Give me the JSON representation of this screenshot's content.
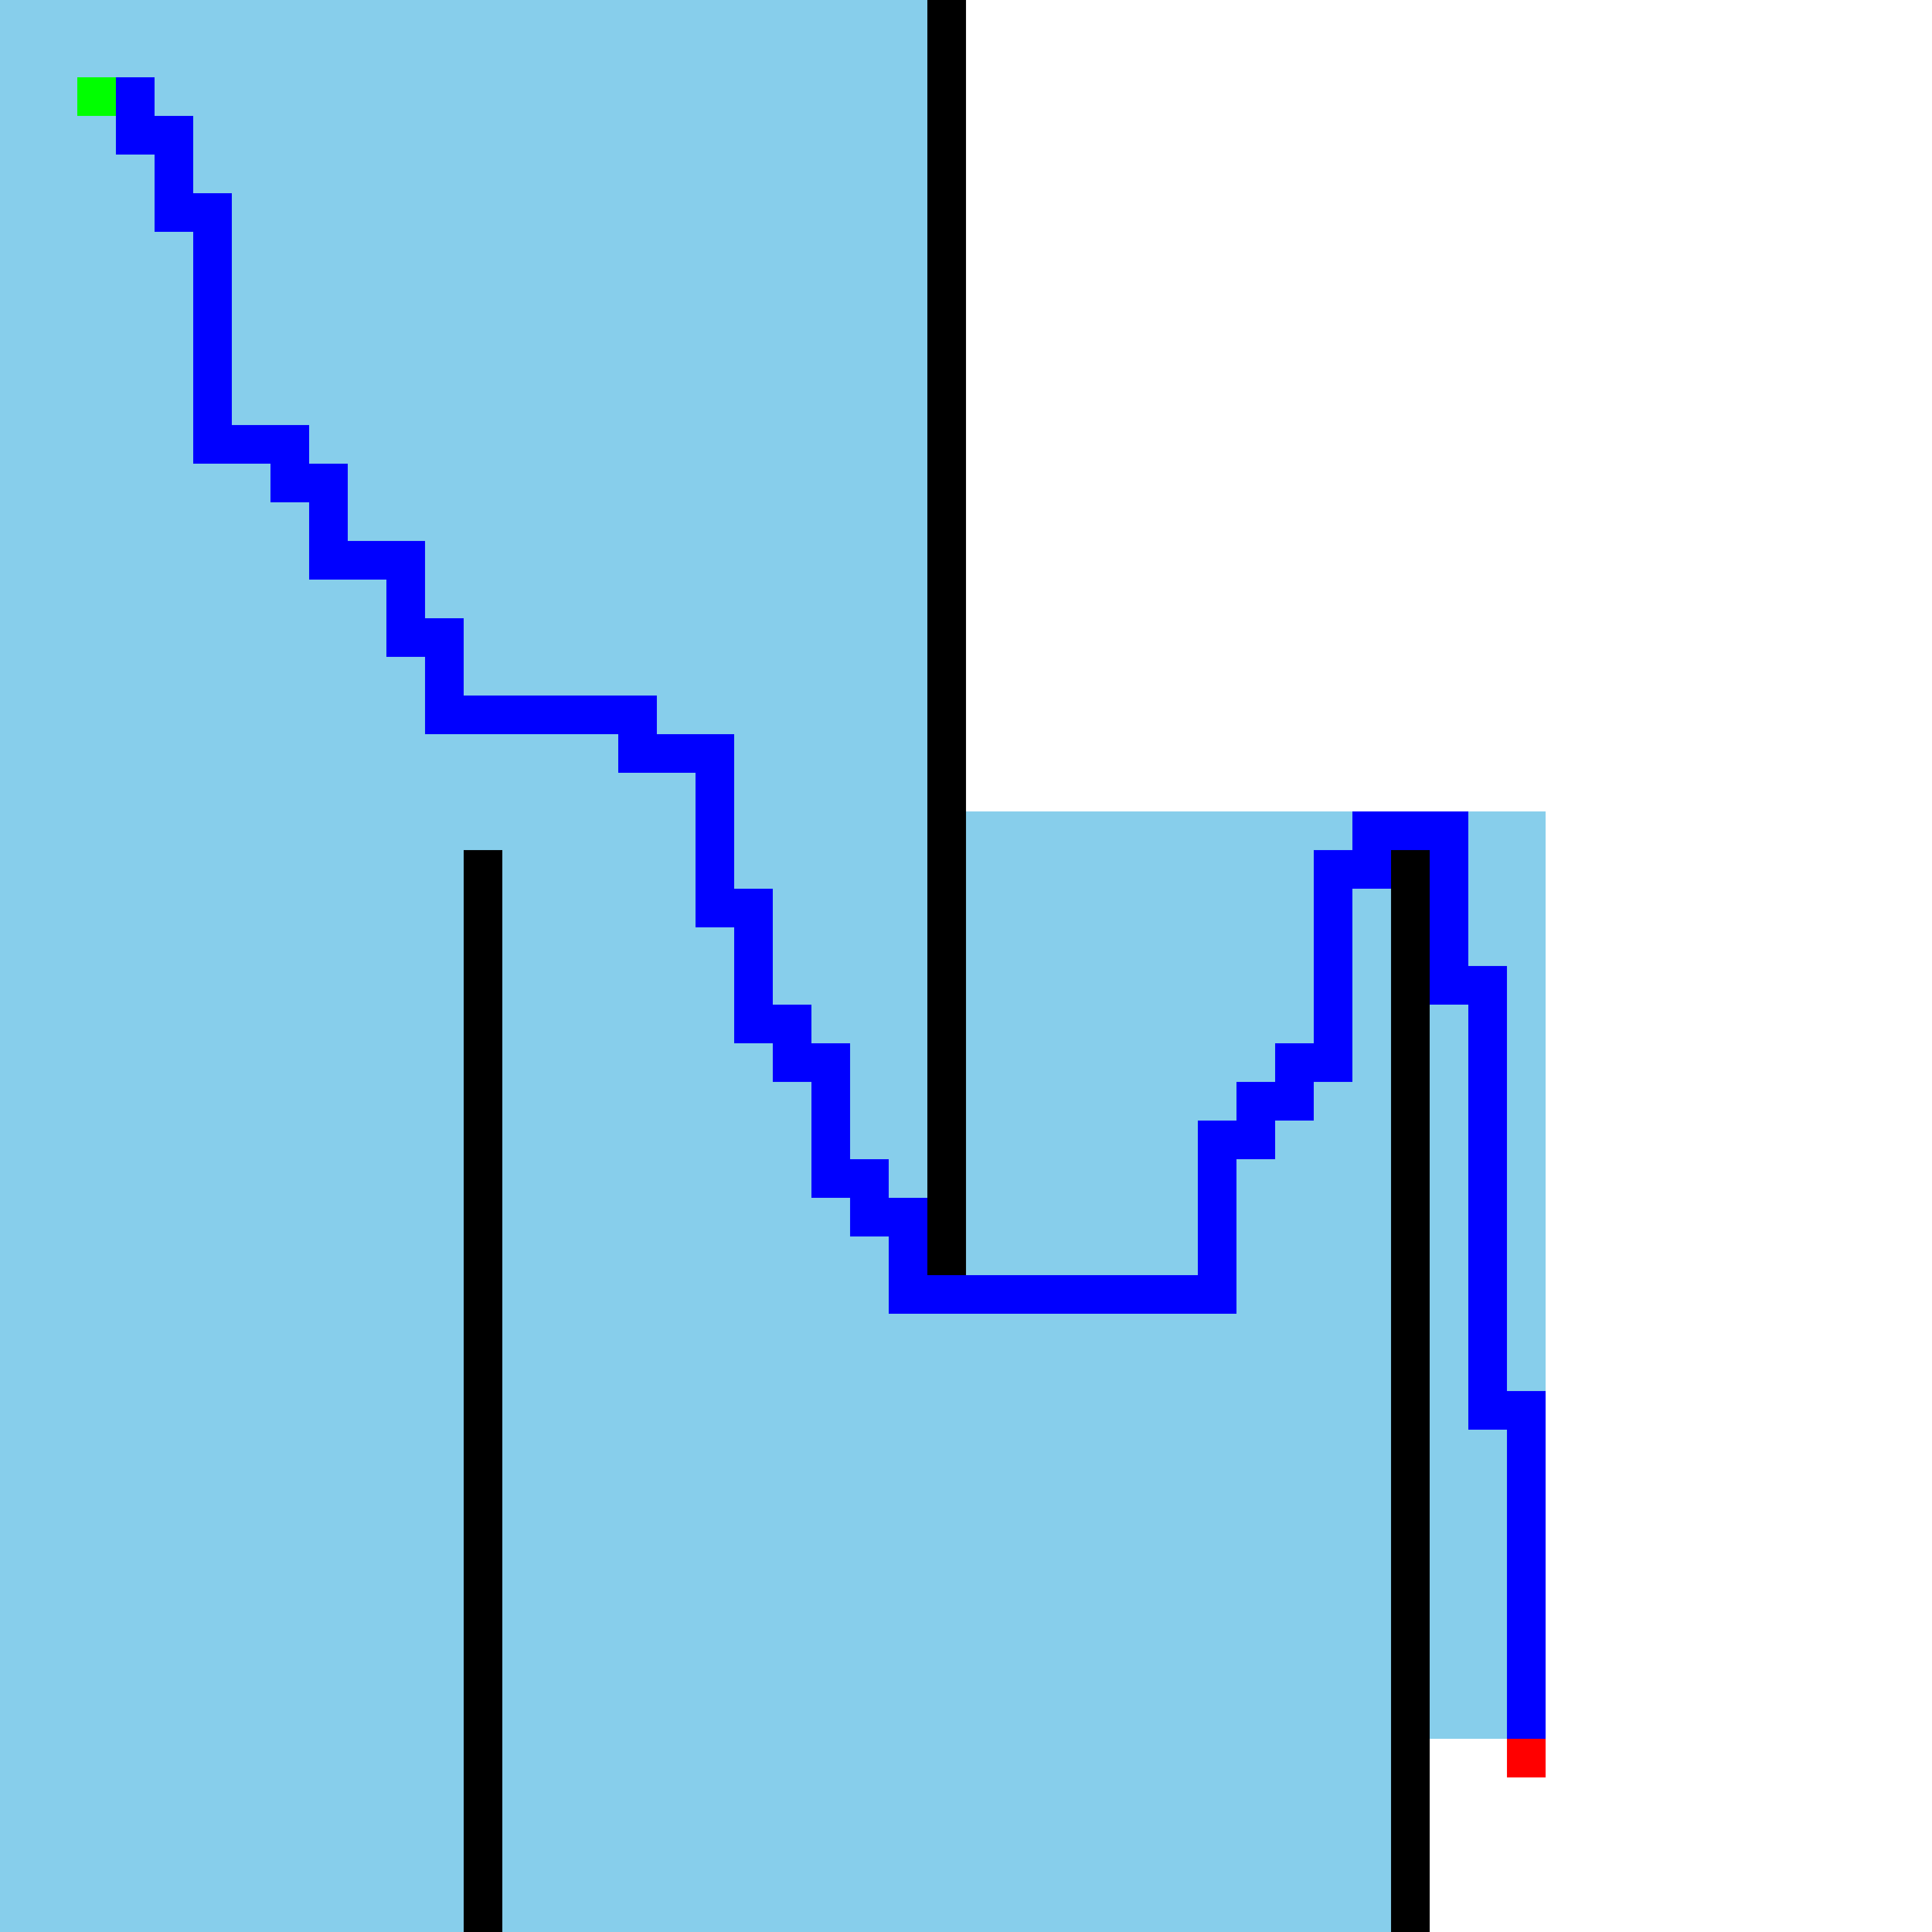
{
  "maze": {
    "grid": {
      "cols": 50,
      "rows": 50
    },
    "colors": {
      "background": "#ffffff",
      "explored": "#87ceeb",
      "wall": "#000000",
      "path": "#0000ff",
      "start": "#00ff00",
      "goal": "#ff0000"
    },
    "explored_regions": [
      {
        "col": 0,
        "row": 0,
        "w": 24,
        "h": 50
      },
      {
        "col": 24,
        "row": 21,
        "w": 12,
        "h": 29
      },
      {
        "col": 36,
        "row": 21,
        "w": 1,
        "h": 22
      },
      {
        "col": 37,
        "row": 21,
        "w": 3,
        "h": 24
      }
    ],
    "walls": [
      {
        "col": 24,
        "row": 0,
        "w": 1,
        "h": 33
      },
      {
        "col": 12,
        "row": 22,
        "w": 1,
        "h": 28
      },
      {
        "col": 36,
        "row": 22,
        "w": 1,
        "h": 28
      }
    ],
    "path": [
      [
        3,
        2
      ],
      [
        3,
        3
      ],
      [
        4,
        3
      ],
      [
        4,
        4
      ],
      [
        4,
        5
      ],
      [
        5,
        5
      ],
      [
        5,
        6
      ],
      [
        5,
        7
      ],
      [
        5,
        8
      ],
      [
        5,
        9
      ],
      [
        5,
        10
      ],
      [
        5,
        11
      ],
      [
        6,
        11
      ],
      [
        7,
        11
      ],
      [
        7,
        12
      ],
      [
        8,
        12
      ],
      [
        8,
        13
      ],
      [
        8,
        14
      ],
      [
        9,
        14
      ],
      [
        10,
        14
      ],
      [
        10,
        15
      ],
      [
        10,
        16
      ],
      [
        11,
        16
      ],
      [
        11,
        17
      ],
      [
        11,
        18
      ],
      [
        12,
        18
      ],
      [
        13,
        18
      ],
      [
        14,
        18
      ],
      [
        15,
        18
      ],
      [
        16,
        18
      ],
      [
        16,
        19
      ],
      [
        17,
        19
      ],
      [
        18,
        19
      ],
      [
        18,
        20
      ],
      [
        18,
        21
      ],
      [
        18,
        22
      ],
      [
        18,
        23
      ],
      [
        19,
        23
      ],
      [
        19,
        24
      ],
      [
        19,
        25
      ],
      [
        19,
        26
      ],
      [
        20,
        26
      ],
      [
        20,
        27
      ],
      [
        21,
        27
      ],
      [
        21,
        28
      ],
      [
        21,
        29
      ],
      [
        21,
        30
      ],
      [
        22,
        30
      ],
      [
        22,
        31
      ],
      [
        23,
        31
      ],
      [
        23,
        32
      ],
      [
        23,
        33
      ],
      [
        24,
        33
      ],
      [
        25,
        33
      ],
      [
        26,
        33
      ],
      [
        27,
        33
      ],
      [
        28,
        33
      ],
      [
        29,
        33
      ],
      [
        30,
        33
      ],
      [
        31,
        33
      ],
      [
        31,
        32
      ],
      [
        31,
        31
      ],
      [
        31,
        30
      ],
      [
        31,
        29
      ],
      [
        32,
        29
      ],
      [
        32,
        28
      ],
      [
        33,
        28
      ],
      [
        33,
        27
      ],
      [
        34,
        27
      ],
      [
        34,
        26
      ],
      [
        34,
        25
      ],
      [
        34,
        24
      ],
      [
        34,
        23
      ],
      [
        34,
        22
      ],
      [
        35,
        22
      ],
      [
        35,
        21
      ],
      [
        36,
        21
      ],
      [
        37,
        21
      ],
      [
        37,
        22
      ],
      [
        37,
        23
      ],
      [
        37,
        24
      ],
      [
        37,
        25
      ],
      [
        38,
        25
      ],
      [
        38,
        26
      ],
      [
        38,
        27
      ],
      [
        38,
        28
      ],
      [
        38,
        29
      ],
      [
        38,
        30
      ],
      [
        38,
        31
      ],
      [
        38,
        32
      ],
      [
        38,
        33
      ],
      [
        38,
        34
      ],
      [
        38,
        35
      ],
      [
        38,
        36
      ],
      [
        39,
        36
      ],
      [
        39,
        37
      ],
      [
        39,
        38
      ],
      [
        39,
        39
      ],
      [
        39,
        40
      ],
      [
        39,
        41
      ],
      [
        39,
        42
      ],
      [
        39,
        43
      ],
      [
        39,
        44
      ]
    ],
    "start": {
      "col": 2,
      "row": 2
    },
    "goal": {
      "col": 39,
      "row": 45
    }
  }
}
